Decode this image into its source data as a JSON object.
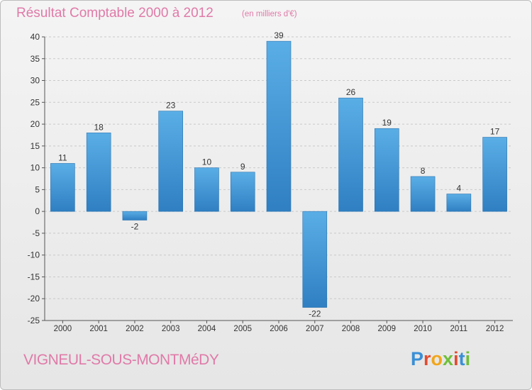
{
  "header": {
    "title": "Résultat Comptable 2000 à 2012",
    "subtitle": "(en milliers d'€)"
  },
  "footer": {
    "commune": "VIGNEUL-SOUS-MONTMéDY",
    "logo_text": "Proxiti",
    "logo_colors": [
      "#3a8fd6",
      "#e34b2f",
      "#f2a51a",
      "#6fbf3a",
      "#e34b2f",
      "#3a8fd6",
      "#6fbf3a"
    ]
  },
  "chart_data": {
    "type": "bar",
    "title": "Résultat Comptable 2000 à 2012",
    "subtitle": "(en milliers d'€)",
    "categories": [
      "2000",
      "2001",
      "2002",
      "2003",
      "2004",
      "2005",
      "2006",
      "2007",
      "2008",
      "2009",
      "2010",
      "2011",
      "2012"
    ],
    "values": [
      11,
      18,
      -2,
      23,
      10,
      9,
      39,
      -22,
      26,
      19,
      8,
      4,
      17
    ],
    "ylim": [
      -25,
      40
    ],
    "yticks": [
      40,
      35,
      30,
      25,
      20,
      15,
      10,
      5,
      0,
      -5,
      -10,
      -15,
      -20,
      -25
    ],
    "xlabel": "",
    "ylabel": "",
    "grid": "horizontal",
    "bar_color": "#3a8fd6"
  }
}
